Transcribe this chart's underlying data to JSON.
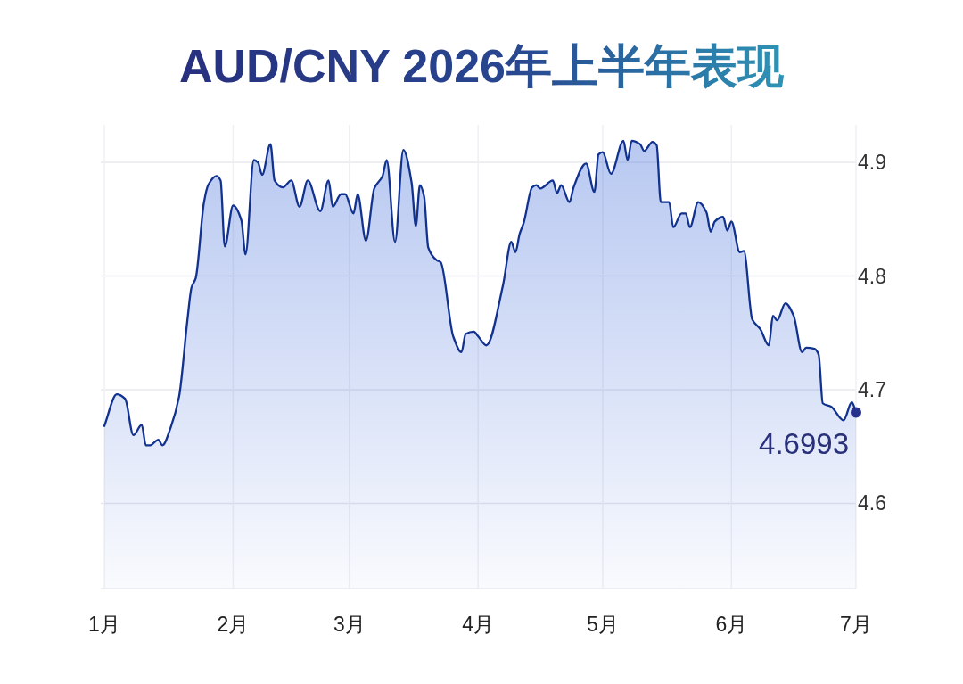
{
  "chart_data": {
    "type": "area",
    "title": "AUD/CNY 2026年上半年表现",
    "x": [
      "2026-01-01",
      "2026-01-04",
      "2026-01-06",
      "2026-01-08",
      "2026-01-10",
      "2026-01-11",
      "2026-01-12",
      "2026-01-14",
      "2026-01-15",
      "2026-01-17",
      "2026-01-19",
      "2026-01-21",
      "2026-01-22",
      "2026-01-23",
      "2026-01-25",
      "2026-01-26",
      "2026-01-28",
      "2026-01-29",
      "2026-01-30",
      "2026-02-01",
      "2026-02-03",
      "2026-02-04",
      "2026-02-06",
      "2026-02-07",
      "2026-02-08",
      "2026-02-10",
      "2026-02-11",
      "2026-02-13",
      "2026-02-15",
      "2026-02-17",
      "2026-02-19",
      "2026-02-22",
      "2026-02-24",
      "2026-02-25",
      "2026-02-27",
      "2026-02-28",
      "2026-03-02",
      "2026-03-03",
      "2026-03-05",
      "2026-03-07",
      "2026-03-09",
      "2026-03-10",
      "2026-03-12",
      "2026-03-14",
      "2026-03-16",
      "2026-03-17",
      "2026-03-18",
      "2026-03-19",
      "2026-03-20",
      "2026-03-22",
      "2026-03-23",
      "2026-03-26",
      "2026-03-28",
      "2026-03-29",
      "2026-03-31",
      "2026-04-01",
      "2026-04-03",
      "2026-04-07",
      "2026-04-09",
      "2026-04-10",
      "2026-04-11",
      "2026-04-12",
      "2026-04-14",
      "2026-04-15",
      "2026-04-16",
      "2026-04-19",
      "2026-04-20",
      "2026-04-21",
      "2026-04-23",
      "2026-04-24",
      "2026-04-27",
      "2026-04-29",
      "2026-04-30",
      "2026-05-01",
      "2026-05-03",
      "2026-05-06",
      "2026-05-07",
      "2026-05-08",
      "2026-05-10",
      "2026-05-11",
      "2026-05-13",
      "2026-05-14",
      "2026-05-15",
      "2026-05-17",
      "2026-05-18",
      "2026-05-20",
      "2026-05-21",
      "2026-05-22",
      "2026-05-24",
      "2026-05-26",
      "2026-05-27",
      "2026-05-28",
      "2026-05-30",
      "2026-05-31",
      "2026-06-01",
      "2026-06-03",
      "2026-06-04",
      "2026-06-06",
      "2026-06-08",
      "2026-06-10",
      "2026-06-11",
      "2026-06-12",
      "2026-06-14",
      "2026-06-16",
      "2026-06-18",
      "2026-06-19",
      "2026-06-21",
      "2026-06-22",
      "2026-06-23",
      "2026-06-25",
      "2026-06-28",
      "2026-06-30",
      "2026-07-01"
    ],
    "values": [
      4.668,
      4.696,
      4.692,
      4.66,
      4.669,
      4.651,
      4.651,
      4.656,
      4.651,
      4.667,
      4.694,
      4.761,
      4.79,
      4.798,
      4.865,
      4.88,
      4.888,
      4.884,
      4.826,
      4.862,
      4.849,
      4.819,
      4.902,
      4.9,
      4.889,
      4.916,
      4.884,
      4.878,
      4.884,
      4.861,
      4.884,
      4.857,
      4.884,
      4.861,
      4.872,
      4.872,
      4.855,
      4.872,
      4.831,
      4.877,
      4.888,
      4.902,
      4.83,
      4.911,
      4.882,
      4.844,
      4.88,
      4.87,
      4.825,
      4.814,
      4.812,
      4.747,
      4.733,
      4.749,
      4.751,
      4.747,
      4.739,
      4.792,
      4.83,
      4.821,
      4.837,
      4.847,
      4.878,
      4.88,
      4.877,
      4.884,
      4.873,
      4.88,
      4.865,
      4.878,
      4.899,
      4.874,
      4.907,
      4.909,
      4.89,
      4.919,
      4.902,
      4.919,
      4.916,
      4.91,
      4.918,
      4.915,
      4.865,
      4.865,
      4.843,
      4.855,
      4.855,
      4.843,
      4.865,
      4.856,
      4.839,
      4.848,
      4.852,
      4.84,
      4.848,
      4.821,
      4.822,
      4.762,
      4.753,
      4.739,
      4.765,
      4.761,
      4.776,
      4.765,
      4.733,
      4.737,
      4.736,
      4.731,
      4.688,
      4.685,
      4.673,
      4.689,
      4.68
    ],
    "color": "#12328f",
    "xlim": [
      "2026-01-01",
      "2026-07-01"
    ],
    "xticks": [
      {
        "value": "2026-01-01",
        "label": "1月"
      },
      {
        "value": "2026-02-01",
        "label": "2月"
      },
      {
        "value": "2026-03-01",
        "label": "3月"
      },
      {
        "value": "2026-04-01",
        "label": "4月"
      },
      {
        "value": "2026-05-01",
        "label": "5月"
      },
      {
        "value": "2026-06-01",
        "label": "6月"
      },
      {
        "value": "2026-07-01",
        "label": "7月"
      }
    ],
    "ylim": [
      4.525,
      4.933
    ],
    "yticks": [
      4.6,
      4.7,
      4.8,
      4.9
    ],
    "grid": true,
    "annotations": [
      {
        "text": "4.6993",
        "x": "2026-07-01",
        "y": 4.68
      }
    ]
  }
}
